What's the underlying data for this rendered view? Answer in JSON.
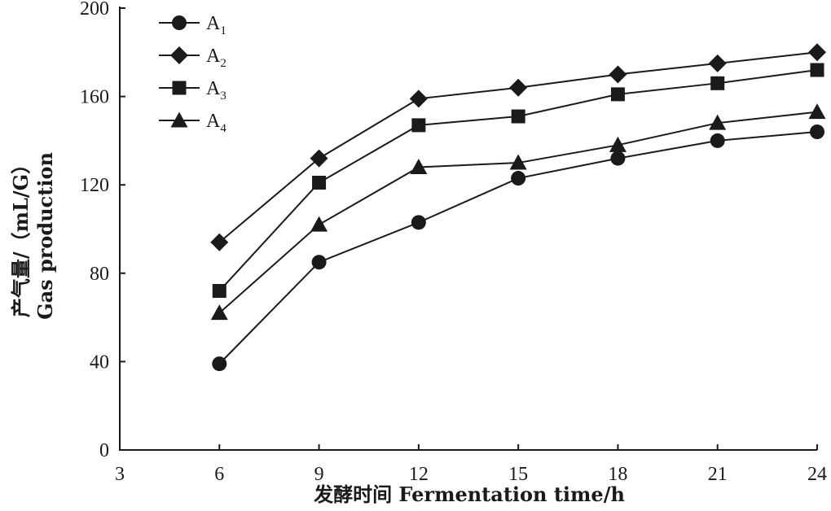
{
  "chart_data": {
    "type": "line",
    "title": "",
    "xlabel": "发酵时间 Fermentation time/h",
    "ylabel_line1": "产气量/（mL/G）",
    "ylabel_line2": "Gas production",
    "xlim": [
      3,
      24
    ],
    "ylim": [
      0,
      200
    ],
    "xticks": [
      3,
      6,
      9,
      12,
      15,
      18,
      21,
      24
    ],
    "yticks": [
      0,
      40,
      80,
      120,
      160,
      200
    ],
    "grid": false,
    "legend_position": "top-left",
    "x": [
      6,
      9,
      12,
      15,
      18,
      21,
      24
    ],
    "series": [
      {
        "name": "A",
        "subscript": "1",
        "marker": "circle",
        "values": [
          39,
          85,
          103,
          123,
          132,
          140,
          144
        ]
      },
      {
        "name": "A",
        "subscript": "2",
        "marker": "diamond",
        "values": [
          94,
          132,
          159,
          164,
          170,
          175,
          180
        ]
      },
      {
        "name": "A",
        "subscript": "3",
        "marker": "square",
        "values": [
          72,
          121,
          147,
          151,
          161,
          166,
          172
        ]
      },
      {
        "name": "A",
        "subscript": "4",
        "marker": "triangle",
        "values": [
          62,
          102,
          128,
          130,
          138,
          148,
          153
        ]
      }
    ],
    "colors": {
      "line": "#1a1a1a",
      "marker": "#1a1a1a"
    }
  }
}
